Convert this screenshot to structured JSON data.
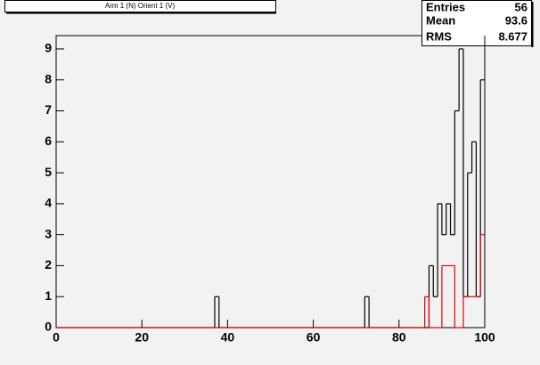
{
  "chart_data": {
    "type": "histogram",
    "title": "Arm 1 (N) Orient 1 (V)",
    "bins": [
      0,
      1,
      2,
      3,
      4,
      5,
      6,
      7,
      8,
      9,
      10,
      11,
      12,
      13,
      14,
      15,
      16,
      17,
      18,
      19,
      20,
      21,
      22,
      23,
      24,
      25,
      26,
      27,
      28,
      29,
      30,
      31,
      32,
      33,
      34,
      35,
      36,
      37,
      38,
      39,
      40,
      41,
      42,
      43,
      44,
      45,
      46,
      47,
      48,
      49,
      50,
      51,
      52,
      53,
      54,
      55,
      56,
      57,
      58,
      59,
      60,
      61,
      62,
      63,
      64,
      65,
      66,
      67,
      68,
      69,
      70,
      71,
      72,
      73,
      74,
      75,
      76,
      77,
      78,
      79,
      80,
      81,
      82,
      83,
      84,
      85,
      86,
      87,
      88,
      89,
      90,
      91,
      92,
      93,
      94,
      95,
      96,
      97,
      98,
      99,
      100
    ],
    "series": [
      {
        "color": "#000000",
        "values": [
          0,
          0,
          0,
          0,
          0,
          0,
          0,
          0,
          0,
          0,
          0,
          0,
          0,
          0,
          0,
          0,
          0,
          0,
          0,
          0,
          0,
          0,
          0,
          0,
          0,
          0,
          0,
          0,
          0,
          0,
          0,
          0,
          0,
          0,
          0,
          0,
          0,
          1,
          0,
          0,
          0,
          0,
          0,
          0,
          0,
          0,
          0,
          0,
          0,
          0,
          0,
          0,
          0,
          0,
          0,
          0,
          0,
          0,
          0,
          0,
          0,
          0,
          0,
          0,
          0,
          0,
          0,
          0,
          0,
          0,
          0,
          0,
          1,
          0,
          0,
          0,
          0,
          0,
          0,
          0,
          0,
          0,
          0,
          0,
          0,
          0,
          0,
          2,
          1,
          4,
          3,
          4,
          3,
          7,
          9,
          1,
          5,
          6,
          1,
          8
        ]
      },
      {
        "color": "#e00000",
        "values": [
          0,
          0,
          0,
          0,
          0,
          0,
          0,
          0,
          0,
          0,
          0,
          0,
          0,
          0,
          0,
          0,
          0,
          0,
          0,
          0,
          0,
          0,
          0,
          0,
          0,
          0,
          0,
          0,
          0,
          0,
          0,
          0,
          0,
          0,
          0,
          0,
          0,
          0,
          0,
          0,
          0,
          0,
          0,
          0,
          0,
          0,
          0,
          0,
          0,
          0,
          0,
          0,
          0,
          0,
          0,
          0,
          0,
          0,
          0,
          0,
          0,
          0,
          0,
          0,
          0,
          0,
          0,
          0,
          0,
          0,
          0,
          0,
          0,
          0,
          0,
          0,
          0,
          0,
          0,
          0,
          0,
          0,
          0,
          0,
          0,
          0,
          1,
          0,
          0,
          0,
          2,
          2,
          2,
          0,
          0,
          1,
          1,
          1,
          1,
          3
        ]
      }
    ],
    "xlim": [
      0,
      100
    ],
    "xticks": [
      0,
      20,
      40,
      60,
      80,
      100
    ],
    "ylim": [
      0,
      9.43
    ],
    "yticks": [
      0,
      1,
      2,
      3,
      4,
      5,
      6,
      7,
      8,
      9
    ],
    "stats": [
      {
        "label": "Entries",
        "value": "56"
      },
      {
        "label": "Mean",
        "value": "93.6"
      },
      {
        "label": "RMS",
        "value": "8.677"
      }
    ]
  }
}
